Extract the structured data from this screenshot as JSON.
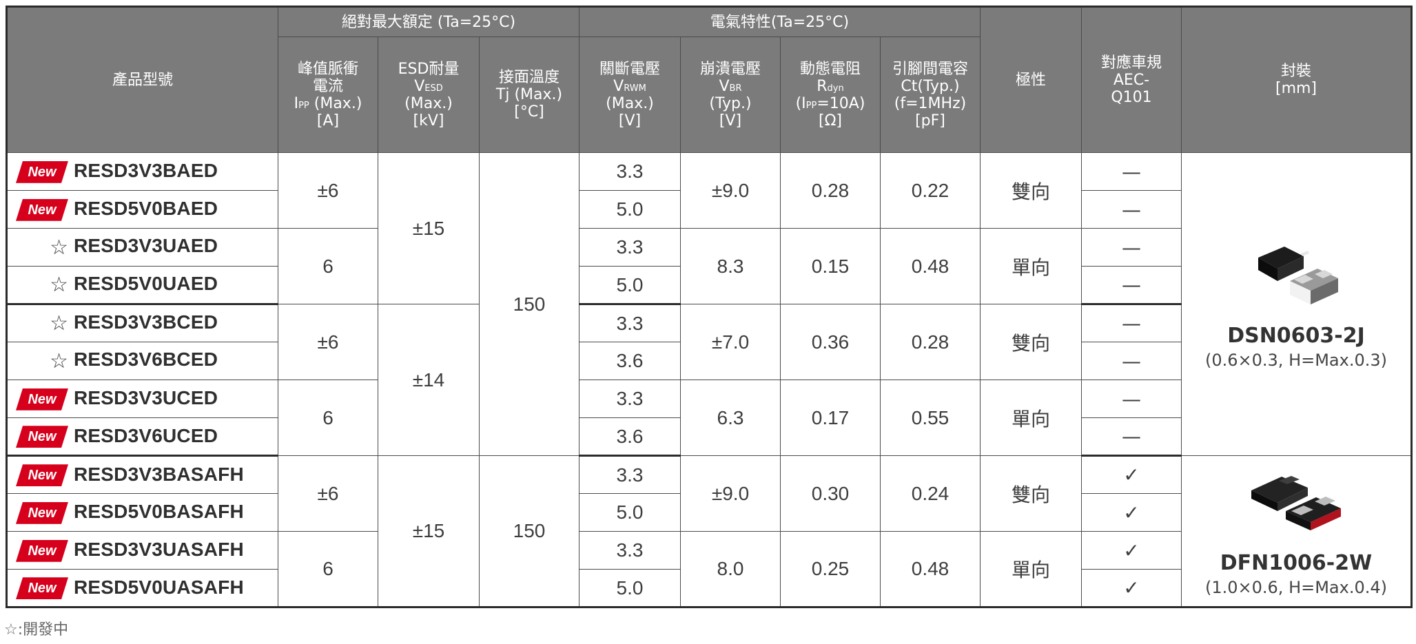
{
  "header": {
    "part_number": "產品型號",
    "group_abs_max": "絕對最大額定 (Ta=25°C)",
    "group_elec": "電氣特性(Ta=25°C)",
    "ipp": {
      "l1": "峰值脈衝",
      "l2": "電流",
      "sym": "I",
      "sub": "PP",
      "l3": " (Max.)",
      "l4": "[A]"
    },
    "vesd": {
      "l1": "ESD耐量",
      "sym": "V",
      "sub": "ESD",
      "l3": "(Max.)",
      "l4": "[kV]"
    },
    "tj": {
      "l1": "接面溫度",
      "l2": "Tj (Max.)",
      "l3": "[°C]"
    },
    "vrwm": {
      "l1": "關斷電壓",
      "sym": "V",
      "sub": "RWM",
      "l3": "(Max.)",
      "l4": "[V]"
    },
    "vbr": {
      "l1": "崩潰電壓",
      "sym": "V",
      "sub": "BR",
      "l3": "(Typ.)",
      "l4": "[V]"
    },
    "rdyn": {
      "l1": "動態電阻",
      "sym": "R",
      "sub": "dyn",
      "l3a": "(I",
      "l3sub": "PP",
      "l3b": "=10A)",
      "l4": "[Ω]"
    },
    "ct": {
      "l1": "引腳間電容",
      "l2": "Ct(Typ.)",
      "l3": "(f=1MHz)",
      "l4": "[pF]"
    },
    "polarity": "極性",
    "aec": {
      "l1": "對應車規",
      "l2": "AEC-",
      "l3": "Q101"
    },
    "package": {
      "l1": "封裝",
      "l2": "[mm]"
    }
  },
  "badge_new": "New",
  "star": "☆",
  "rows": [
    {
      "mark": "new",
      "part": "RESD3V3BAED",
      "vrwm": "3.3",
      "aec": "—"
    },
    {
      "mark": "new",
      "part": "RESD5V0BAED",
      "vrwm": "5.0",
      "aec": "—"
    },
    {
      "mark": "star",
      "part": "RESD3V3UAED",
      "vrwm": "3.3",
      "aec": "—"
    },
    {
      "mark": "star",
      "part": "RESD5V0UAED",
      "vrwm": "5.0",
      "aec": "—"
    },
    {
      "mark": "star",
      "part": "RESD3V3BCED",
      "vrwm": "3.3",
      "aec": "—"
    },
    {
      "mark": "star",
      "part": "RESD3V6BCED",
      "vrwm": "3.6",
      "aec": "—"
    },
    {
      "mark": "new",
      "part": "RESD3V3UCED",
      "vrwm": "3.3",
      "aec": "—"
    },
    {
      "mark": "new",
      "part": "RESD3V6UCED",
      "vrwm": "3.6",
      "aec": "—"
    },
    {
      "mark": "new",
      "part": "RESD3V3BASAFH",
      "vrwm": "3.3",
      "aec": "✓"
    },
    {
      "mark": "new",
      "part": "RESD5V0BASAFH",
      "vrwm": "5.0",
      "aec": "✓"
    },
    {
      "mark": "new",
      "part": "RESD3V3UASAFH",
      "vrwm": "3.3",
      "aec": "✓"
    },
    {
      "mark": "new",
      "part": "RESD5V0UASAFH",
      "vrwm": "5.0",
      "aec": "✓"
    }
  ],
  "pairs": [
    {
      "ipp": "±6",
      "vbr": "±9.0",
      "rdyn": "0.28",
      "ct": "0.22",
      "polarity": "雙向"
    },
    {
      "ipp": "6",
      "vbr": "8.3",
      "rdyn": "0.15",
      "ct": "0.48",
      "polarity": "單向"
    },
    {
      "ipp": "±6",
      "vbr": "±7.0",
      "rdyn": "0.36",
      "ct": "0.28",
      "polarity": "雙向"
    },
    {
      "ipp": "6",
      "vbr": "6.3",
      "rdyn": "0.17",
      "ct": "0.55",
      "polarity": "單向"
    },
    {
      "ipp": "±6",
      "vbr": "±9.0",
      "rdyn": "0.30",
      "ct": "0.24",
      "polarity": "雙向"
    },
    {
      "ipp": "6",
      "vbr": "8.0",
      "rdyn": "0.25",
      "ct": "0.48",
      "polarity": "單向"
    }
  ],
  "quads": [
    {
      "vesd": "±15"
    },
    {
      "vesd": "±14"
    },
    {
      "vesd": "±15"
    }
  ],
  "tj_groups": [
    {
      "tj": "150"
    },
    {
      "tj": "150"
    }
  ],
  "packages": [
    {
      "name": "DSN0603-2J",
      "dims": "(0.6×0.3, H=Max.0.3)"
    },
    {
      "name": "DFN1006-2W",
      "dims": "(1.0×0.6, H=Max.0.4)"
    }
  ],
  "footnote": "☆:開發中",
  "colors": {
    "header_bg": "#7b7b7b",
    "new_badge": "#d6001c",
    "border": "#2b2b2b"
  }
}
